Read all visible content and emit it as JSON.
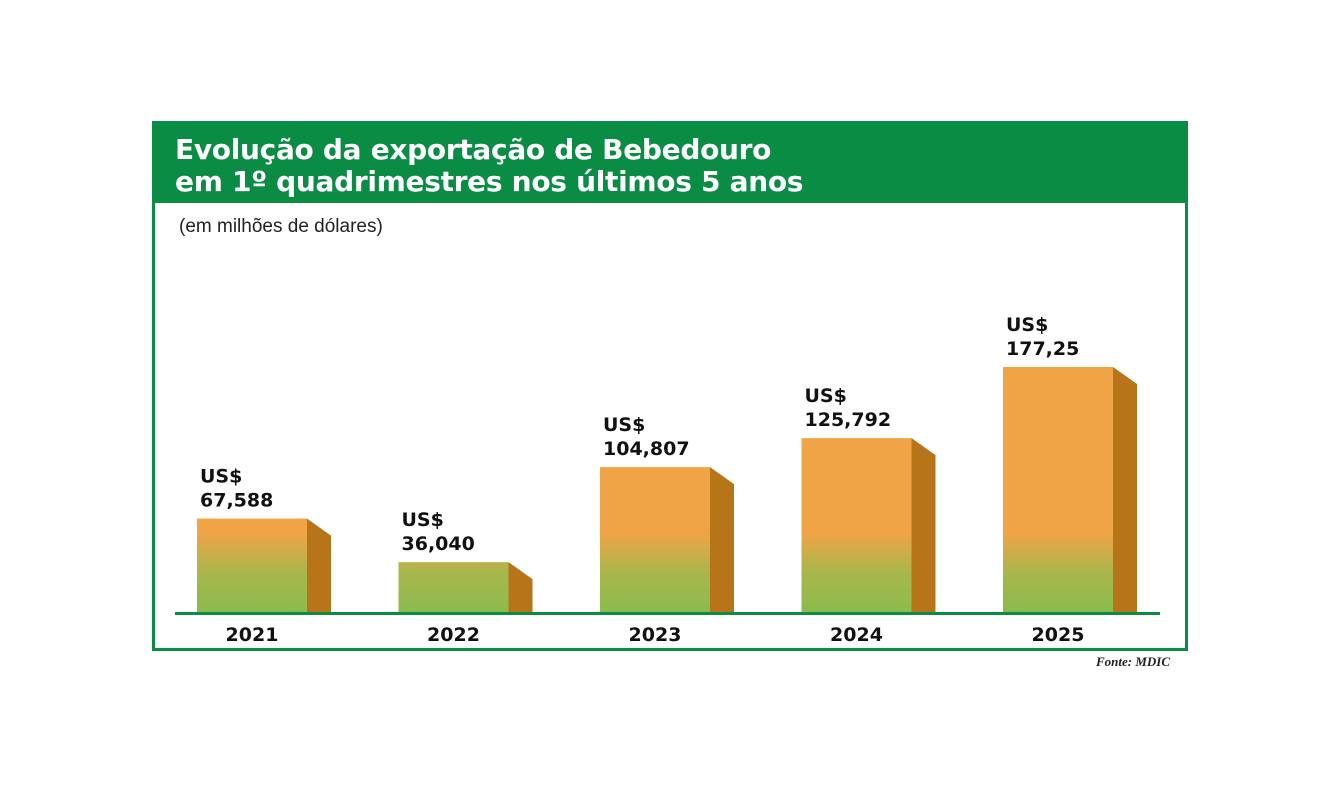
{
  "title_line1": "Evolução da exportação de Bebedouro",
  "title_line2": "em 1º quadrimestres nos últimos 5 anos",
  "subtitle": "(em milhões de dólares)",
  "source": "Fonte: MDIC",
  "colors": {
    "header": "#0a8c45",
    "bar_top": "#f0a446",
    "bar_bottom": "#8bbb4d",
    "bar_side": "#b87418",
    "baseline": "#0a8c45"
  },
  "chart_data": {
    "type": "bar",
    "categories": [
      "2021",
      "2022",
      "2023",
      "2024",
      "2025"
    ],
    "values": [
      67.588,
      36.04,
      104.807,
      125.792,
      177.25
    ],
    "value_labels": [
      [
        "US$",
        "67,588"
      ],
      [
        "US$",
        "36,040"
      ],
      [
        "US$",
        "104,807"
      ],
      [
        "US$",
        "125,792"
      ],
      [
        "US$",
        "177,25"
      ]
    ],
    "unit_note": "(em milhões de dólares)",
    "grid": false,
    "legend": "none"
  }
}
